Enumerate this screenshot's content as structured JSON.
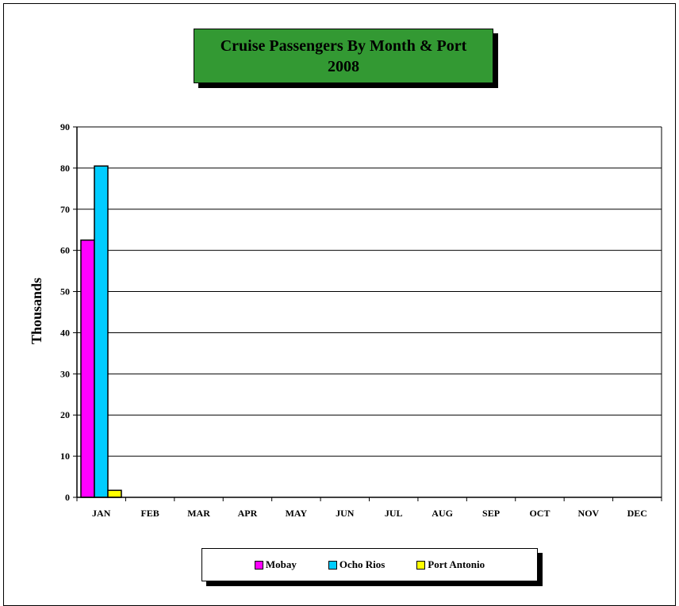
{
  "chart_data": {
    "type": "bar",
    "title": "Cruise Passengers By Month & Port",
    "subtitle": "2008",
    "xlabel": "",
    "ylabel": "Thousands",
    "ylim": [
      0,
      90
    ],
    "yticks": [
      0,
      10,
      20,
      30,
      40,
      50,
      60,
      70,
      80,
      90
    ],
    "grid": true,
    "legend_position": "bottom",
    "categories": [
      "JAN",
      "FEB",
      "MAR",
      "APR",
      "MAY",
      "JUN",
      "JUL",
      "AUG",
      "SEP",
      "OCT",
      "NOV",
      "DEC"
    ],
    "series": [
      {
        "name": "Mobay",
        "color": "#ff00ff",
        "values": [
          62.5,
          null,
          null,
          null,
          null,
          null,
          null,
          null,
          null,
          null,
          null,
          null
        ]
      },
      {
        "name": "Ocho Rios",
        "color": "#00ccff",
        "values": [
          80.5,
          null,
          null,
          null,
          null,
          null,
          null,
          null,
          null,
          null,
          null,
          null
        ]
      },
      {
        "name": "Port Antonio",
        "color": "#ffff00",
        "values": [
          1.7,
          null,
          null,
          null,
          null,
          null,
          null,
          null,
          null,
          null,
          null,
          null
        ]
      }
    ]
  },
  "colors": {
    "title_background": "#339933"
  }
}
